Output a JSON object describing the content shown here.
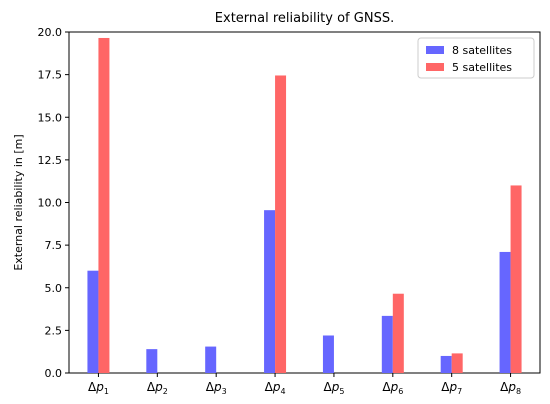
{
  "chart_data": {
    "type": "bar",
    "title": "External reliability of GNSS.",
    "xlabel": "",
    "ylabel": "External reliability in [m]",
    "ylim": [
      0,
      20
    ],
    "yticks": [
      "0.0",
      "2.5",
      "5.0",
      "7.5",
      "10.0",
      "12.5",
      "15.0",
      "17.5",
      "20.0"
    ],
    "categories": [
      "Δp1",
      "Δp2",
      "Δp3",
      "Δp4",
      "Δp5",
      "Δp6",
      "Δp7",
      "Δp8"
    ],
    "category_parts": [
      {
        "base": "Δ",
        "var": "p",
        "sub": "1"
      },
      {
        "base": "Δ",
        "var": "p",
        "sub": "2"
      },
      {
        "base": "Δ",
        "var": "p",
        "sub": "3"
      },
      {
        "base": "Δ",
        "var": "p",
        "sub": "4"
      },
      {
        "base": "Δ",
        "var": "p",
        "sub": "5"
      },
      {
        "base": "Δ",
        "var": "p",
        "sub": "6"
      },
      {
        "base": "Δ",
        "var": "p",
        "sub": "7"
      },
      {
        "base": "Δ",
        "var": "p",
        "sub": "8"
      }
    ],
    "series": [
      {
        "name": "8 satellites",
        "color": "#6666ff",
        "values": [
          6.0,
          1.4,
          1.55,
          9.55,
          2.2,
          3.35,
          1.0,
          7.1
        ]
      },
      {
        "name": "5 satellites",
        "color": "#ff6666",
        "values": [
          19.65,
          null,
          null,
          17.45,
          null,
          4.65,
          1.15,
          11.0
        ]
      }
    ],
    "legend_position": "top-right",
    "grid": false
  }
}
